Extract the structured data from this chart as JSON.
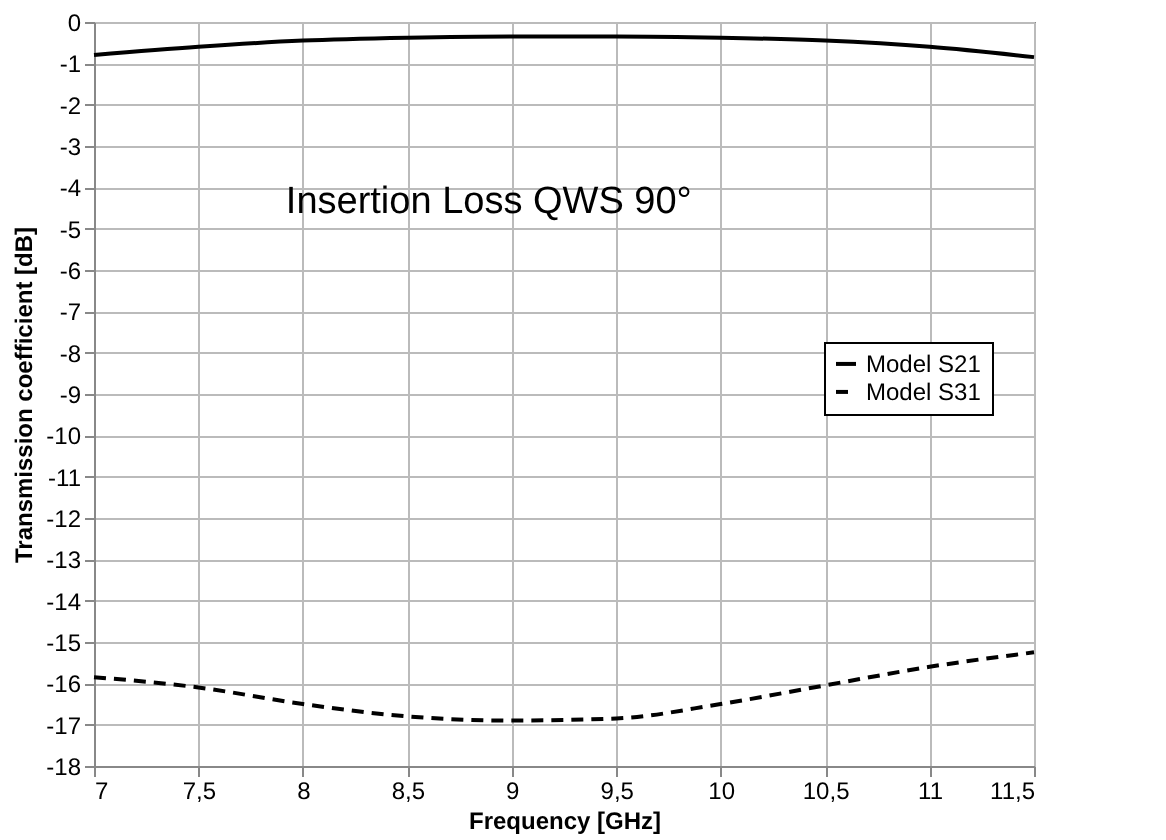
{
  "chart_data": {
    "type": "line",
    "xlabel": "Frequency [GHz]",
    "ylabel": "Transmission coefficient [dB]",
    "annotations": [
      "Insertion Loss QWS 90°"
    ],
    "x": [
      7,
      7.5,
      8,
      8.5,
      9,
      9.5,
      10,
      10.5,
      11,
      11.5
    ],
    "series": [
      {
        "name": "Model S21",
        "color": "#000000",
        "line_style": "solid",
        "values": [
          -0.8,
          -0.6,
          -0.45,
          -0.38,
          -0.35,
          -0.35,
          -0.38,
          -0.45,
          -0.6,
          -0.85
        ]
      },
      {
        "name": "Model S31",
        "color": "#000000",
        "line_style": "dashed",
        "values": [
          -15.85,
          -16.1,
          -16.5,
          -16.8,
          -16.9,
          -16.85,
          -16.5,
          -16.05,
          -15.6,
          -15.25
        ]
      }
    ],
    "xlim": [
      7,
      11.5
    ],
    "xticks": [
      7,
      {
        "value": 7.5,
        "label": "7,5"
      },
      8,
      {
        "value": 8.5,
        "label": "8,5"
      },
      9,
      {
        "value": 9.5,
        "label": "9,5"
      },
      10,
      {
        "value": 10.5,
        "label": "10,5"
      },
      11,
      {
        "value": 11.5,
        "label": "11,5"
      }
    ],
    "ylim": [
      -18,
      0
    ],
    "yticks": [
      -18,
      -17,
      -16,
      -15,
      -14,
      -13,
      -12,
      -11,
      -10,
      -9,
      -8,
      -7,
      -6,
      -5,
      -4,
      -3,
      -2,
      -1,
      0
    ],
    "grid": true,
    "legend": "right",
    "marker": "none"
  }
}
